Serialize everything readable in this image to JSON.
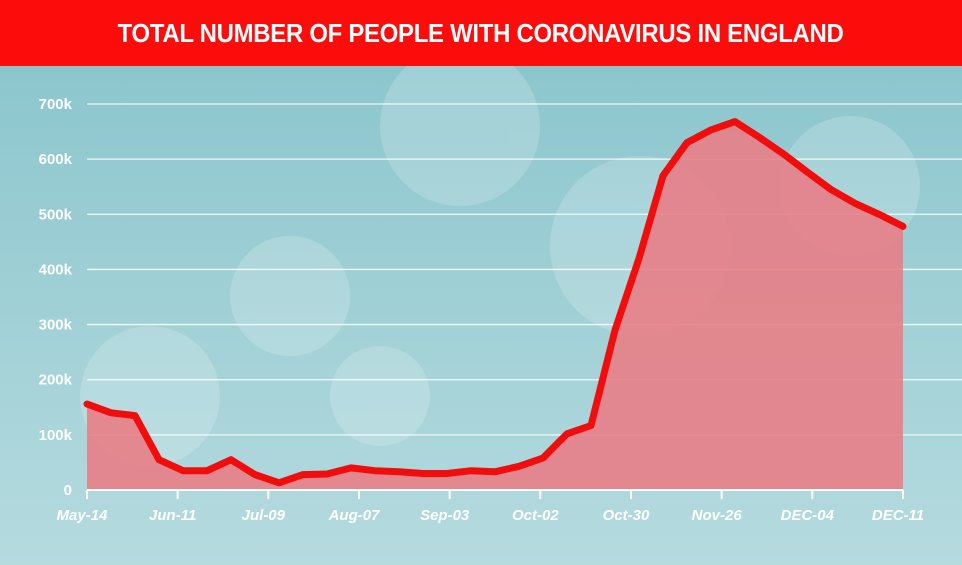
{
  "title": "TOTAL NUMBER OF PEOPLE WITH CORONAVIRUS IN ENGLAND",
  "colors": {
    "banner": "#fd0c0c",
    "line": "#f20d0d",
    "area": "#e97c84",
    "background_top": "#8cc6cd",
    "background_bottom": "#b5dbdf",
    "grid": "#ffffff",
    "tick_text": "#ffffff"
  },
  "chart_data": {
    "type": "area",
    "title": "TOTAL NUMBER OF PEOPLE WITH CORONAVIRUS IN ENGLAND",
    "xlabel": "",
    "ylabel": "",
    "ylim": [
      0,
      700000
    ],
    "yticks": [
      0,
      100000,
      200000,
      300000,
      400000,
      500000,
      600000,
      700000
    ],
    "ytick_labels": [
      "0",
      "100k",
      "200k",
      "300k",
      "400k",
      "500k",
      "600k",
      "700k"
    ],
    "xtick_labels": [
      "May-14",
      "Jun-11",
      "Jul-09",
      "Aug-07",
      "Sep-03",
      "Oct-02",
      "Oct-30",
      "Nov-26",
      "DEC-04",
      "DEC-11"
    ],
    "grid": true,
    "legend": "none",
    "series": [
      {
        "values": [
          156000,
          140000,
          135000,
          55000,
          35000,
          35000,
          55000,
          28000,
          13000,
          28000,
          29000,
          40000,
          35000,
          33000,
          30000,
          30000,
          35000,
          33000,
          43000,
          58000,
          102000,
          117000,
          290000,
          420000,
          570000,
          630000,
          653000,
          668000,
          640000,
          610000,
          577000,
          545000,
          520000,
          500000,
          478000
        ]
      }
    ]
  }
}
